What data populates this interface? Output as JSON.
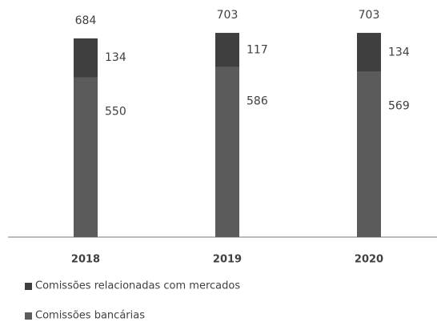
{
  "chart_data": {
    "type": "stacked_bar",
    "categories": [
      "2018",
      "2019",
      "2020"
    ],
    "series": [
      {
        "name": "Comissões relacionadas com mercados",
        "color": "#3f3f3f",
        "values": [
          134,
          117,
          134
        ]
      },
      {
        "name": "Comissões bancárias",
        "color": "#5b5b5b",
        "values": [
          550,
          586,
          569
        ]
      }
    ],
    "totals": [
      684,
      703,
      703
    ],
    "ylim": [
      0,
      750
    ]
  }
}
